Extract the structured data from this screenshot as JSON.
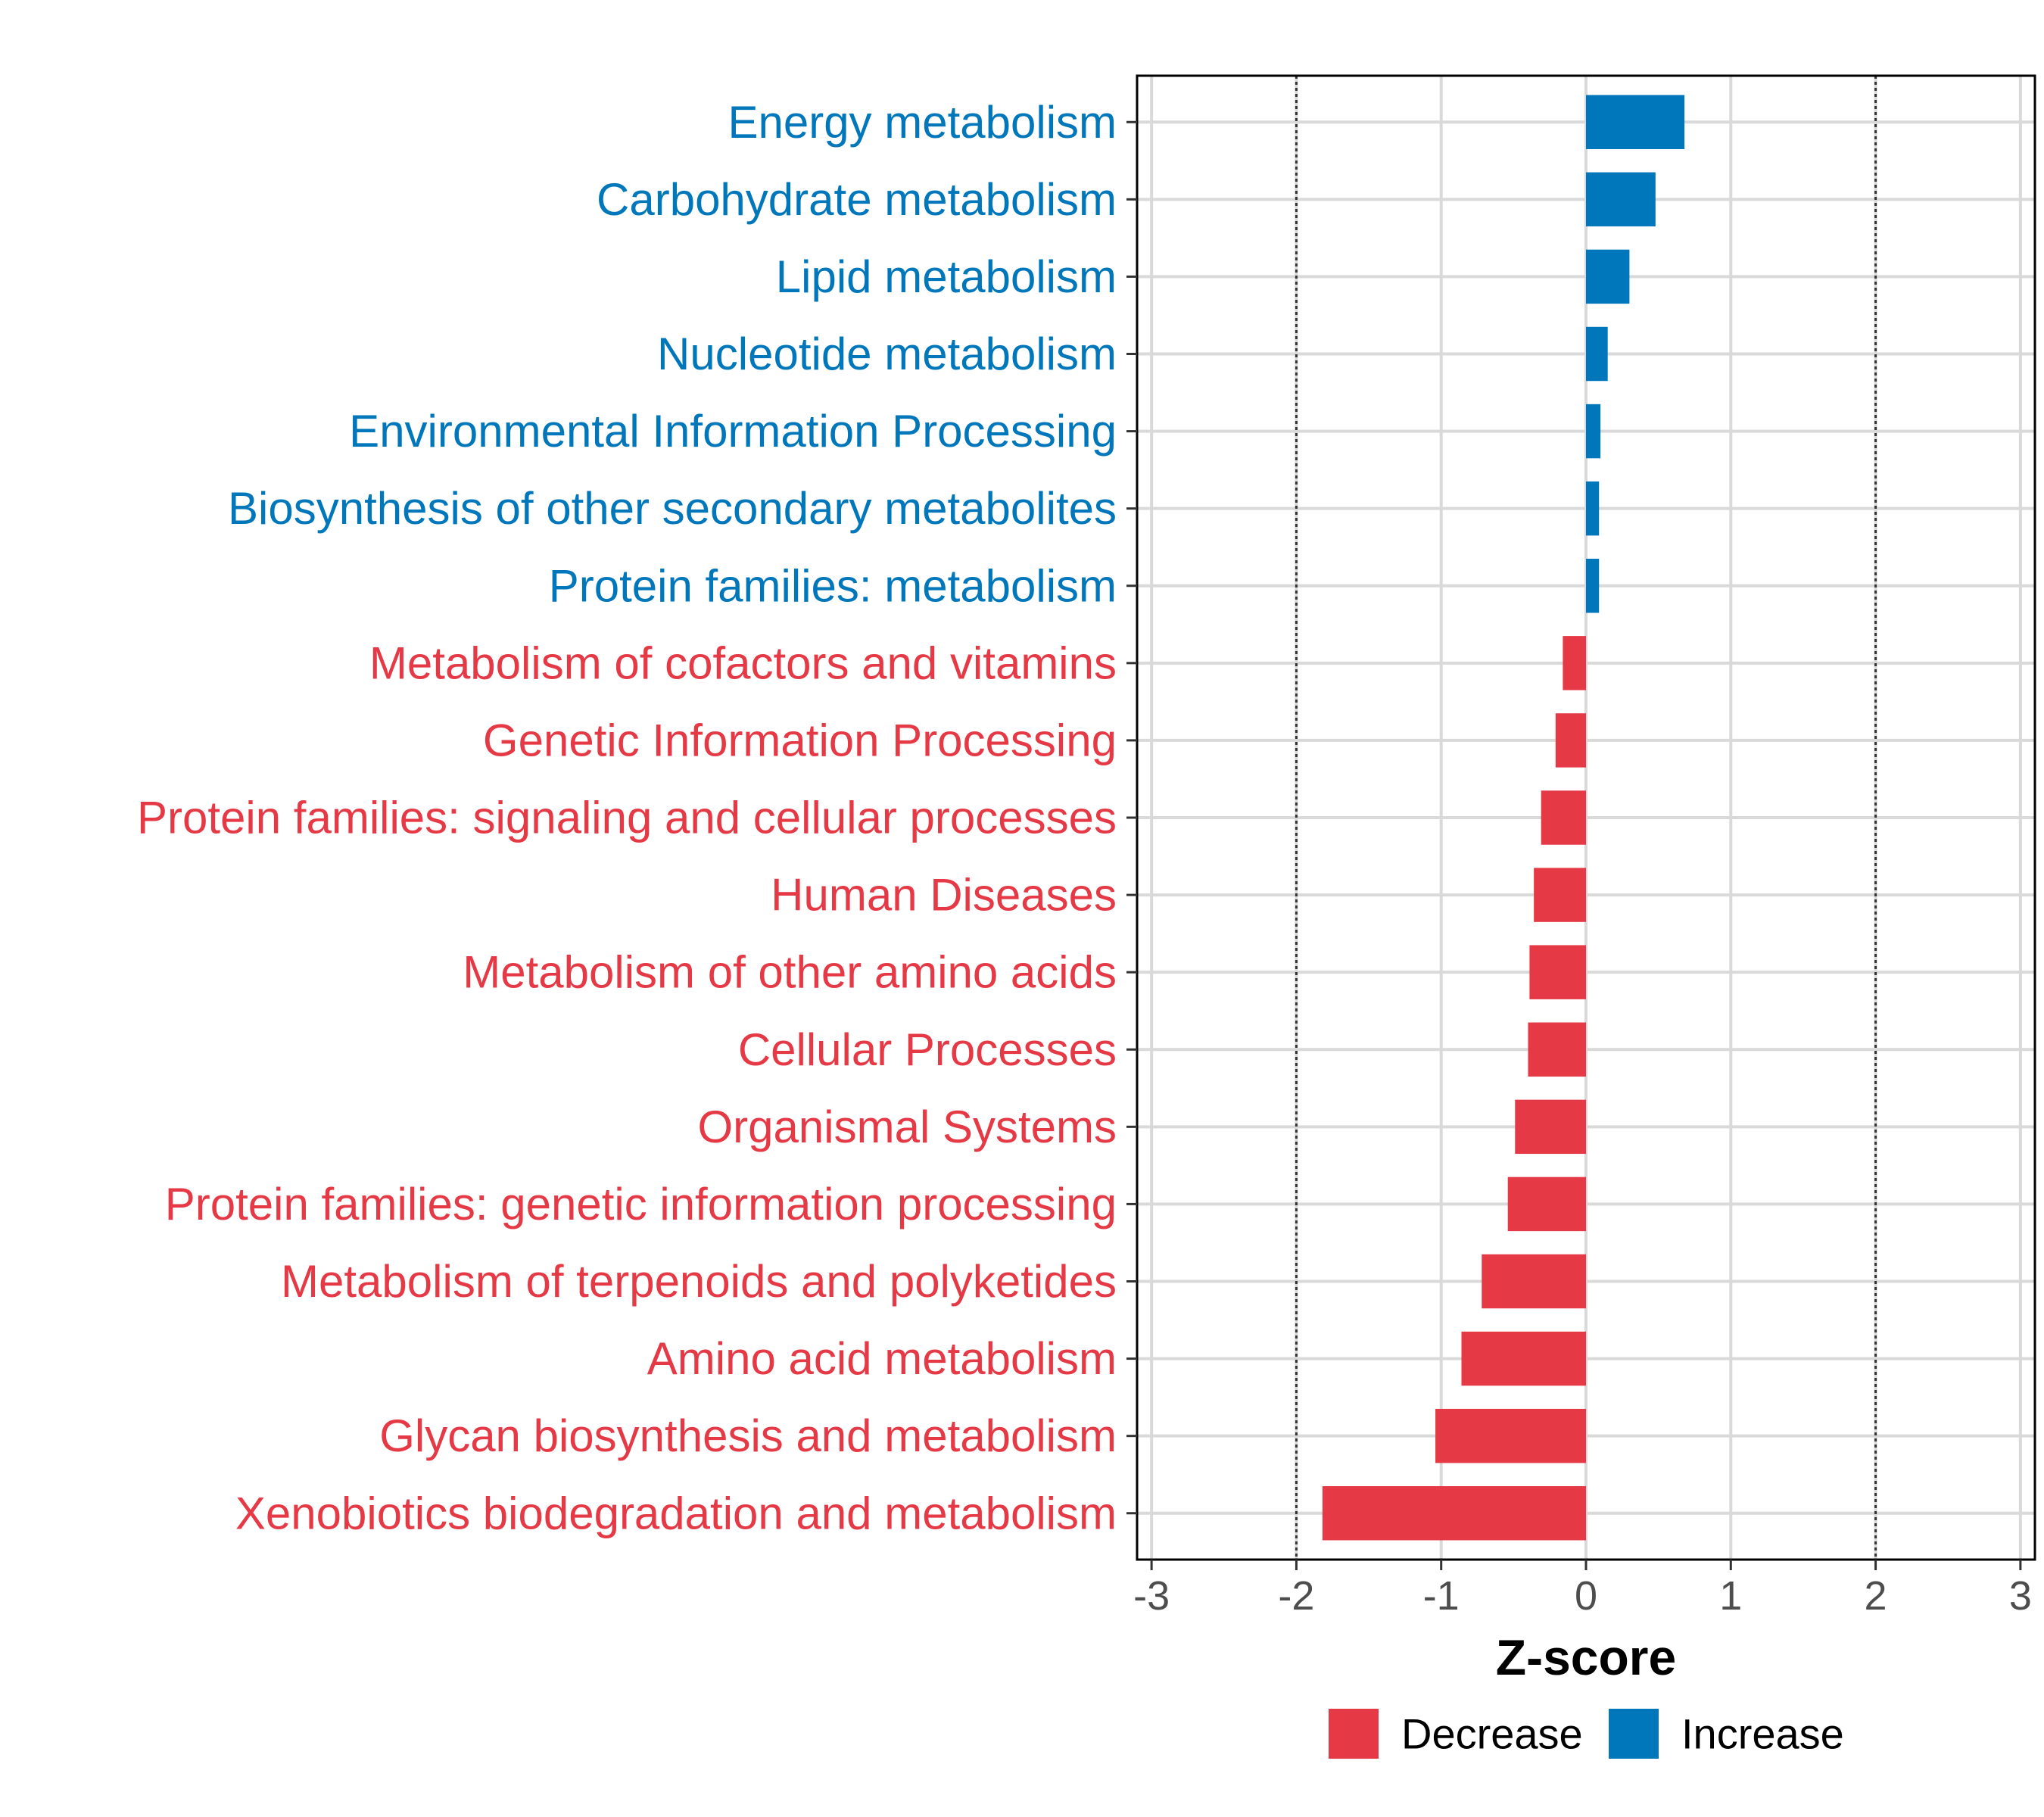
{
  "chart_data": {
    "type": "bar",
    "orientation": "horizontal",
    "xlabel": "Z-score",
    "xlim": [
      -3.1,
      3.1
    ],
    "xticks": [
      -3,
      -2,
      -1,
      0,
      1,
      2,
      3
    ],
    "xtick_labels": [
      "-3",
      "-2",
      "-1",
      "0",
      "1",
      "2",
      "3"
    ],
    "reference_lines": [
      -2,
      2
    ],
    "grid": true,
    "colors": {
      "Decrease": "#E63946",
      "Increase": "#0077BB"
    },
    "categories": [
      "Energy metabolism",
      "Carbohydrate metabolism",
      "Lipid metabolism",
      "Nucleotide metabolism",
      "Environmental Information Processing",
      "Biosynthesis of other secondary metabolites",
      "Protein families: metabolism",
      "Metabolism of cofactors and vitamins",
      "Genetic Information Processing",
      "Protein families: signaling and cellular processes",
      "Human Diseases",
      "Metabolism of other amino acids",
      "Cellular Processes",
      "Organismal Systems",
      "Protein families: genetic information processing",
      "Metabolism of terpenoids and polyketides",
      "Amino acid metabolism",
      "Glycan biosynthesis and metabolism",
      "Xenobiotics biodegradation and metabolism"
    ],
    "values": [
      0.68,
      0.48,
      0.3,
      0.15,
      0.1,
      0.09,
      0.09,
      -0.16,
      -0.21,
      -0.31,
      -0.36,
      -0.39,
      -0.4,
      -0.49,
      -0.54,
      -0.72,
      -0.86,
      -1.04,
      -1.82
    ],
    "groups": [
      "Increase",
      "Increase",
      "Increase",
      "Increase",
      "Increase",
      "Increase",
      "Increase",
      "Decrease",
      "Decrease",
      "Decrease",
      "Decrease",
      "Decrease",
      "Decrease",
      "Decrease",
      "Decrease",
      "Decrease",
      "Decrease",
      "Decrease",
      "Decrease"
    ],
    "legend": {
      "position": "bottom",
      "items": [
        {
          "label": "Decrease",
          "color": "#E63946"
        },
        {
          "label": "Increase",
          "color": "#0077BB"
        }
      ]
    }
  }
}
